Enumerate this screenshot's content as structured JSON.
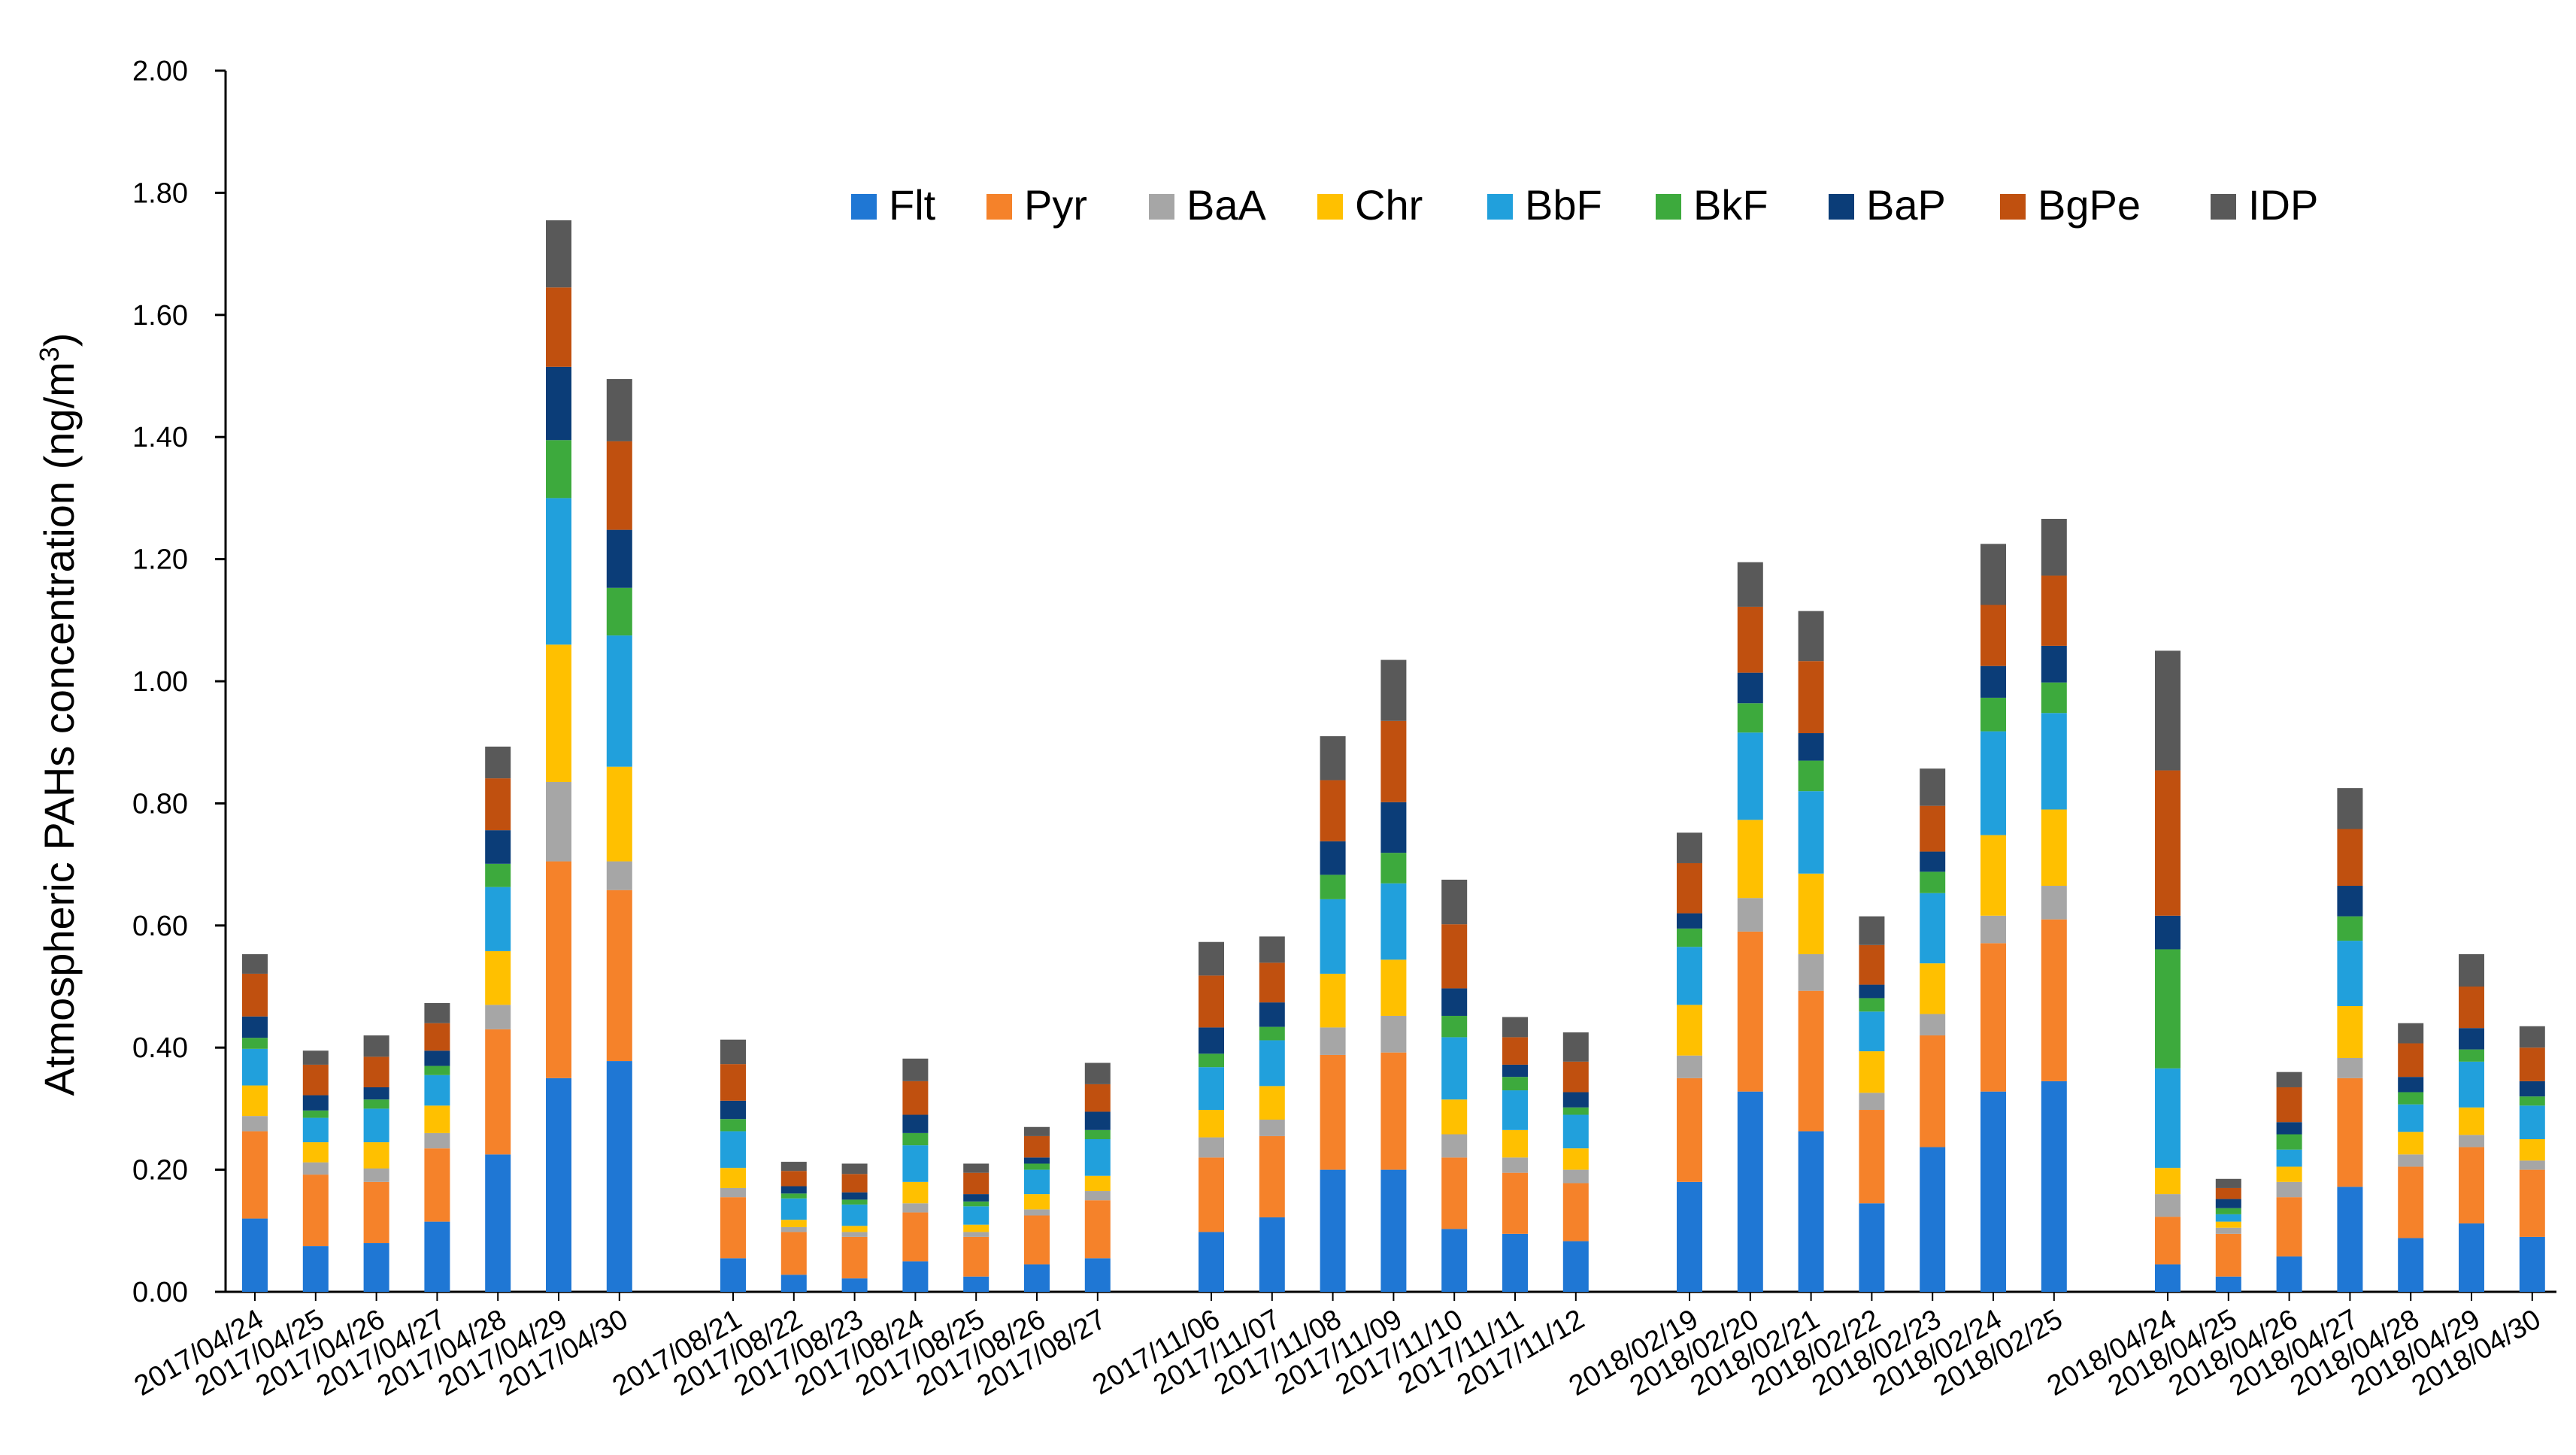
{
  "chart_data": {
    "type": "bar",
    "stacked": true,
    "title": "",
    "xlabel": "",
    "ylabel_main": "Atmospheric PAHs concentration (ng/m",
    "ylabel_sup": "3",
    "ylabel_end": ")",
    "ylim": [
      0,
      2.0
    ],
    "yticks": [
      "0.00",
      "0.20",
      "0.40",
      "0.60",
      "0.80",
      "1.00",
      "1.20",
      "1.40",
      "1.60",
      "1.80",
      "2.00"
    ],
    "legend_position": "top-right",
    "grid": false,
    "groups": [
      [
        "2017/04/24",
        "2017/04/25",
        "2017/04/26",
        "2017/04/27",
        "2017/04/28",
        "2017/04/29",
        "2017/04/30"
      ],
      [
        "2017/08/21",
        "2017/08/22",
        "2017/08/23",
        "2017/08/24",
        "2017/08/25",
        "2017/08/26",
        "2017/08/27"
      ],
      [
        "2017/11/06",
        "2017/11/07",
        "2017/11/08",
        "2017/11/09",
        "2017/11/10",
        "2017/11/11",
        "2017/11/12"
      ],
      [
        "2018/02/19",
        "2018/02/20",
        "2018/02/21",
        "2018/02/22",
        "2018/02/23",
        "2018/02/24",
        "2018/02/25"
      ],
      [
        "2018/04/24",
        "2018/04/25",
        "2018/04/26",
        "2018/04/27",
        "2018/04/28",
        "2018/04/29",
        "2018/04/30"
      ]
    ],
    "series": [
      {
        "name": "Flt",
        "color": "#1f77d4",
        "values": [
          0.12,
          0.075,
          0.08,
          0.115,
          0.225,
          0.35,
          0.378,
          0.055,
          0.028,
          0.022,
          0.05,
          0.025,
          0.045,
          0.055,
          0.098,
          0.122,
          0.2,
          0.2,
          0.103,
          0.095,
          0.083,
          0.18,
          0.328,
          0.263,
          0.145,
          0.237,
          0.328,
          0.345,
          0.045,
          0.025,
          0.058,
          0.172,
          0.088,
          0.112,
          0.09
        ]
      },
      {
        "name": "Pyr",
        "color": "#f5822a",
        "values": [
          0.143,
          0.117,
          0.1,
          0.12,
          0.205,
          0.355,
          0.28,
          0.1,
          0.07,
          0.068,
          0.08,
          0.065,
          0.08,
          0.095,
          0.122,
          0.133,
          0.188,
          0.192,
          0.117,
          0.1,
          0.095,
          0.17,
          0.262,
          0.23,
          0.153,
          0.183,
          0.243,
          0.265,
          0.078,
          0.07,
          0.097,
          0.178,
          0.117,
          0.125,
          0.11
        ]
      },
      {
        "name": "BaA",
        "color": "#a6a6a6",
        "values": [
          0.025,
          0.02,
          0.022,
          0.025,
          0.04,
          0.13,
          0.047,
          0.015,
          0.008,
          0.008,
          0.015,
          0.008,
          0.01,
          0.015,
          0.033,
          0.027,
          0.045,
          0.06,
          0.038,
          0.025,
          0.022,
          0.037,
          0.055,
          0.06,
          0.028,
          0.035,
          0.045,
          0.055,
          0.037,
          0.01,
          0.025,
          0.033,
          0.02,
          0.02,
          0.015
        ]
      },
      {
        "name": "Chr",
        "color": "#ffc000",
        "values": [
          0.05,
          0.033,
          0.043,
          0.045,
          0.088,
          0.225,
          0.155,
          0.033,
          0.012,
          0.01,
          0.035,
          0.012,
          0.025,
          0.025,
          0.045,
          0.055,
          0.088,
          0.092,
          0.057,
          0.045,
          0.035,
          0.083,
          0.128,
          0.132,
          0.068,
          0.083,
          0.132,
          0.125,
          0.043,
          0.01,
          0.025,
          0.085,
          0.037,
          0.045,
          0.035
        ]
      },
      {
        "name": "BbF",
        "color": "#21a0dc",
        "values": [
          0.06,
          0.04,
          0.055,
          0.05,
          0.105,
          0.24,
          0.215,
          0.06,
          0.035,
          0.035,
          0.06,
          0.03,
          0.04,
          0.06,
          0.07,
          0.075,
          0.122,
          0.125,
          0.102,
          0.065,
          0.055,
          0.095,
          0.143,
          0.135,
          0.065,
          0.115,
          0.17,
          0.158,
          0.163,
          0.012,
          0.028,
          0.107,
          0.045,
          0.075,
          0.055
        ]
      },
      {
        "name": "BkF",
        "color": "#3daa3d",
        "values": [
          0.018,
          0.012,
          0.015,
          0.015,
          0.038,
          0.095,
          0.078,
          0.02,
          0.008,
          0.008,
          0.02,
          0.008,
          0.01,
          0.015,
          0.022,
          0.022,
          0.04,
          0.05,
          0.035,
          0.022,
          0.012,
          0.03,
          0.048,
          0.05,
          0.022,
          0.035,
          0.055,
          0.05,
          0.195,
          0.01,
          0.025,
          0.04,
          0.02,
          0.02,
          0.015
        ]
      },
      {
        "name": "BaP",
        "color": "#0b3d78",
        "values": [
          0.035,
          0.025,
          0.02,
          0.025,
          0.055,
          0.12,
          0.095,
          0.03,
          0.012,
          0.012,
          0.03,
          0.012,
          0.01,
          0.03,
          0.043,
          0.04,
          0.055,
          0.083,
          0.045,
          0.02,
          0.025,
          0.025,
          0.05,
          0.045,
          0.022,
          0.033,
          0.052,
          0.06,
          0.055,
          0.015,
          0.02,
          0.05,
          0.025,
          0.035,
          0.025
        ]
      },
      {
        "name": "BgPe",
        "color": "#c0500f",
        "values": [
          0.07,
          0.05,
          0.05,
          0.045,
          0.085,
          0.13,
          0.145,
          0.06,
          0.025,
          0.03,
          0.055,
          0.035,
          0.035,
          0.045,
          0.085,
          0.065,
          0.1,
          0.133,
          0.105,
          0.045,
          0.05,
          0.082,
          0.108,
          0.118,
          0.065,
          0.075,
          0.1,
          0.115,
          0.238,
          0.018,
          0.057,
          0.093,
          0.055,
          0.068,
          0.055
        ]
      },
      {
        "name": "IDP",
        "color": "#595959",
        "values": [
          0.032,
          0.023,
          0.035,
          0.033,
          0.052,
          0.11,
          0.102,
          0.04,
          0.015,
          0.017,
          0.037,
          0.015,
          0.015,
          0.035,
          0.055,
          0.043,
          0.072,
          0.1,
          0.073,
          0.033,
          0.048,
          0.05,
          0.073,
          0.082,
          0.047,
          0.061,
          0.1,
          0.093,
          0.196,
          0.015,
          0.025,
          0.067,
          0.033,
          0.053,
          0.035
        ]
      }
    ]
  }
}
